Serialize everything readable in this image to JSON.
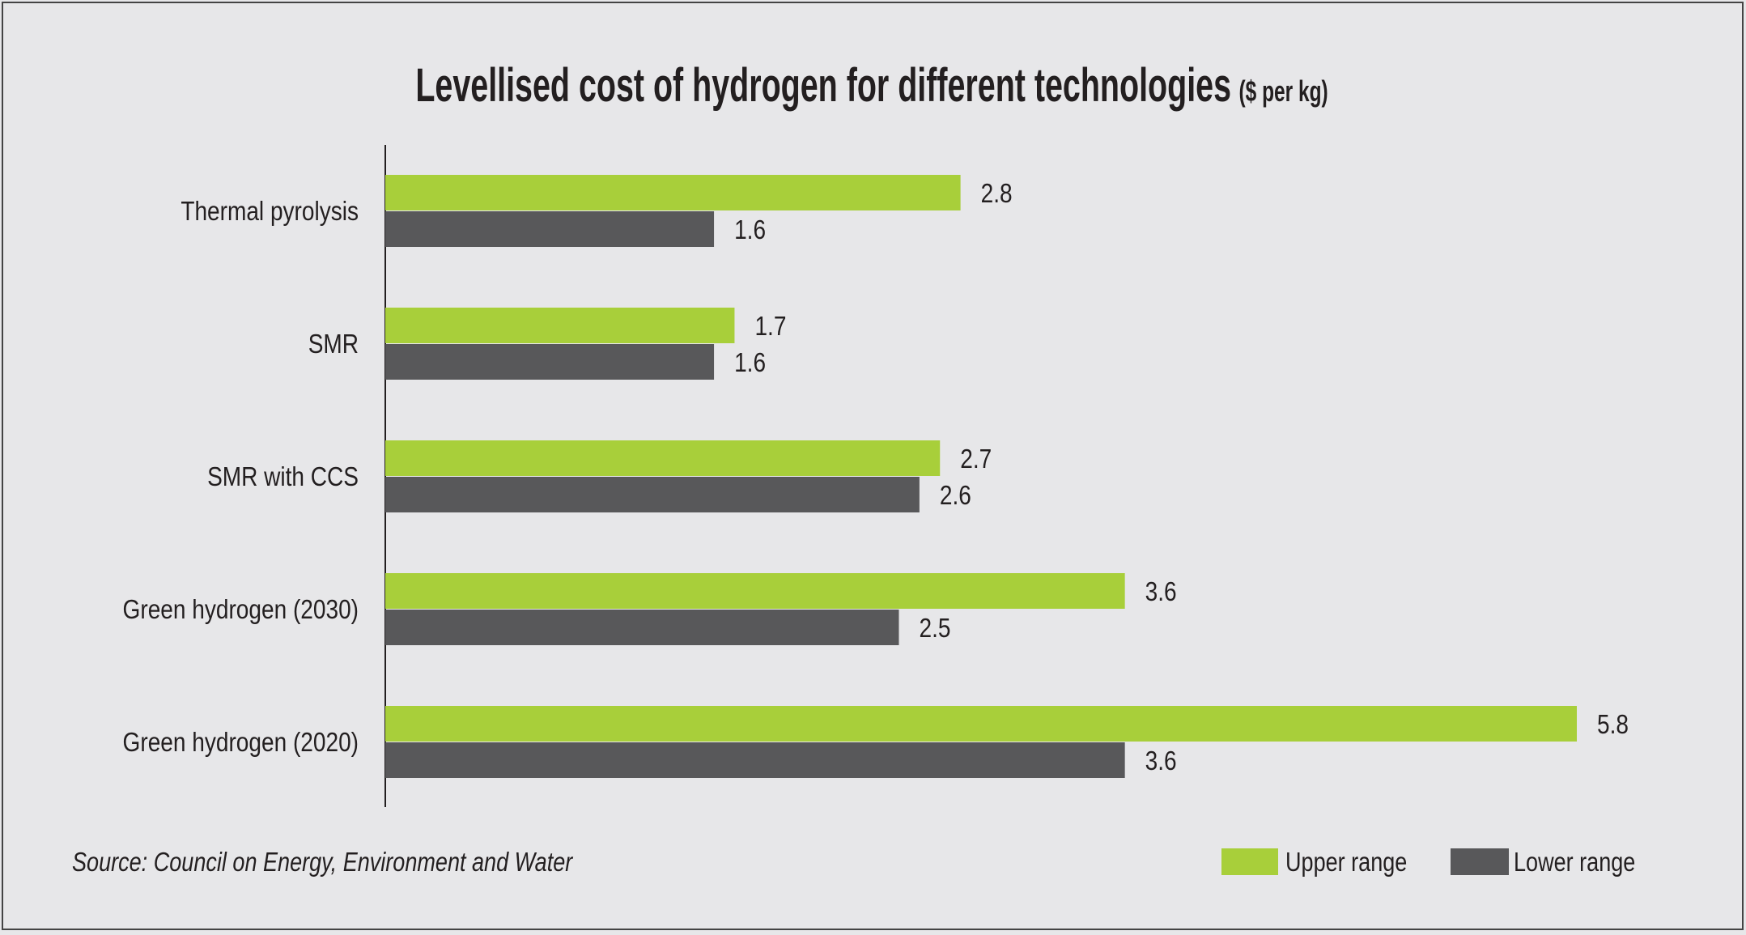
{
  "chart_data": {
    "type": "bar",
    "orientation": "horizontal",
    "title": "Levellised cost of hydrogen for different technologies",
    "subtitle": "($ per kg)",
    "categories": [
      "Thermal pyrolysis",
      "SMR",
      "SMR with CCS",
      "Green hydrogen (2030)",
      "Green hydrogen (2020)"
    ],
    "series": [
      {
        "name": "Upper range",
        "color": "#a8cf3a",
        "values": [
          2.8,
          1.7,
          2.7,
          3.6,
          5.8
        ]
      },
      {
        "name": "Lower range",
        "color": "#58585a",
        "values": [
          1.6,
          1.6,
          2.6,
          2.5,
          3.6
        ]
      }
    ],
    "xlim": [
      0,
      5.8
    ],
    "grid": false,
    "data_labels": true,
    "legend_position": "bottom-right",
    "source": "Source: Council on Energy, Environment and Water"
  },
  "colors": {
    "background": "#e7e7e9",
    "text": "#231f20"
  }
}
